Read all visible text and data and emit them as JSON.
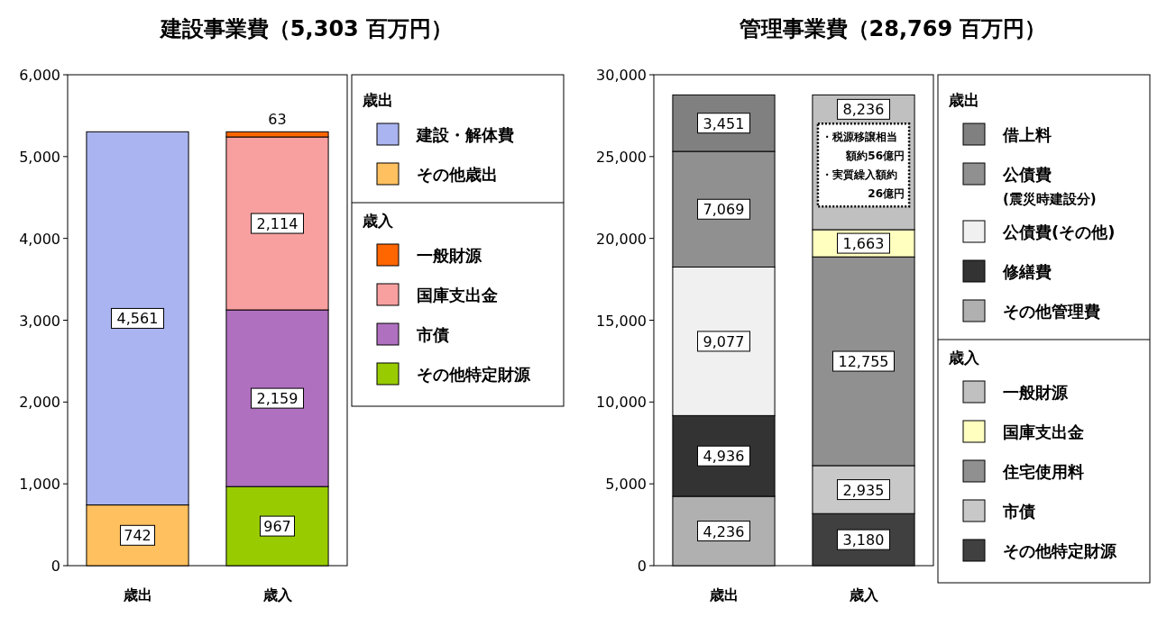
{
  "chart_data": [
    {
      "type": "bar",
      "title": "建設事業費（5,303 百万円）",
      "stacked": true,
      "legend": "right",
      "categories": [
        "歳出",
        "歳入"
      ],
      "ylim": [
        0,
        6000
      ],
      "yticks": [
        0,
        {
          "value": 1000,
          "label": "1,000"
        },
        {
          "value": 2000,
          "label": "2,000"
        },
        {
          "value": 3000,
          "label": "3,000"
        },
        {
          "value": 4000,
          "label": "4,000"
        },
        {
          "value": 5000,
          "label": "5,000"
        },
        {
          "value": 6000,
          "label": "6,000"
        }
      ],
      "series": [
        {
          "name": "その他歳出",
          "color": "#ffc060",
          "values": [
            742,
            null
          ],
          "value_labels": [
            "742",
            null
          ]
        },
        {
          "name": "建設・解体費",
          "color": "#aab4f0",
          "values": [
            4561,
            null
          ],
          "value_labels": [
            "4,561",
            null
          ]
        },
        {
          "name": "その他特定財源",
          "color": "#99cc00",
          "values": [
            null,
            967
          ],
          "value_labels": [
            null,
            "967"
          ]
        },
        {
          "name": "市債",
          "color": "#b070c0",
          "values": [
            null,
            2159
          ],
          "value_labels": [
            null,
            "2,159"
          ]
        },
        {
          "name": "国庫支出金",
          "color": "#f8a0a0",
          "values": [
            null,
            2114
          ],
          "value_labels": [
            null,
            "2,114"
          ]
        },
        {
          "name": "一般財源",
          "color": "#ff6600",
          "values": [
            null,
            63
          ],
          "value_labels": [
            null,
            "63"
          ]
        }
      ]
    },
    {
      "type": "bar",
      "title": "管理事業費（28,769 百万円）",
      "stacked": true,
      "legend": "right",
      "categories": [
        "歳出",
        "歳入"
      ],
      "ylim": [
        0,
        30000
      ],
      "yticks": [
        0,
        {
          "value": 5000,
          "label": "5,000"
        },
        {
          "value": 10000,
          "label": "10,000"
        },
        {
          "value": 15000,
          "label": "15,000"
        },
        {
          "value": 20000,
          "label": "20,000"
        },
        {
          "value": 25000,
          "label": "25,000"
        },
        {
          "value": 30000,
          "label": "30,000"
        }
      ],
      "series": [
        {
          "name": "その他管理費",
          "color": "#b0b0b0",
          "values": [
            4236,
            null
          ],
          "value_labels": [
            "4,236",
            null
          ]
        },
        {
          "name": "修繕費",
          "color": "#333333",
          "values": [
            4936,
            null
          ],
          "value_labels": [
            "4,936",
            null
          ]
        },
        {
          "name": "公債費(その他)",
          "color": "#f0f0f0",
          "values": [
            9077,
            null
          ],
          "value_labels": [
            "9,077",
            null
          ]
        },
        {
          "name": "公債費\n(震災時建設分)",
          "color": "#909090",
          "values": [
            7069,
            null
          ],
          "value_labels": [
            "7,069",
            null
          ]
        },
        {
          "name": "借上料",
          "color": "#808080",
          "values": [
            3451,
            null
          ],
          "value_labels": [
            "3,451",
            null
          ]
        },
        {
          "name": "その他特定財源",
          "color": "#404040",
          "values": [
            null,
            3180
          ],
          "value_labels": [
            null,
            "3,180"
          ]
        },
        {
          "name": "市債",
          "color": "#c8c8c8",
          "values": [
            null,
            2935
          ],
          "value_labels": [
            null,
            "2,935"
          ]
        },
        {
          "name": "住宅使用料",
          "color": "#909090",
          "values": [
            null,
            12755
          ],
          "value_labels": [
            null,
            "12,755"
          ]
        },
        {
          "name": "国庫支出金",
          "color": "#ffffc0",
          "values": [
            null,
            1663
          ],
          "value_labels": [
            null,
            "1,663"
          ]
        },
        {
          "name": "一般財源",
          "color": "#c0c0c0",
          "values": [
            null,
            8236
          ],
          "value_labels": [
            null,
            "8,236"
          ]
        }
      ],
      "annotations": [
        "・税源移譲相当額約56億円",
        "・実質繰入額約26億円"
      ]
    }
  ]
}
